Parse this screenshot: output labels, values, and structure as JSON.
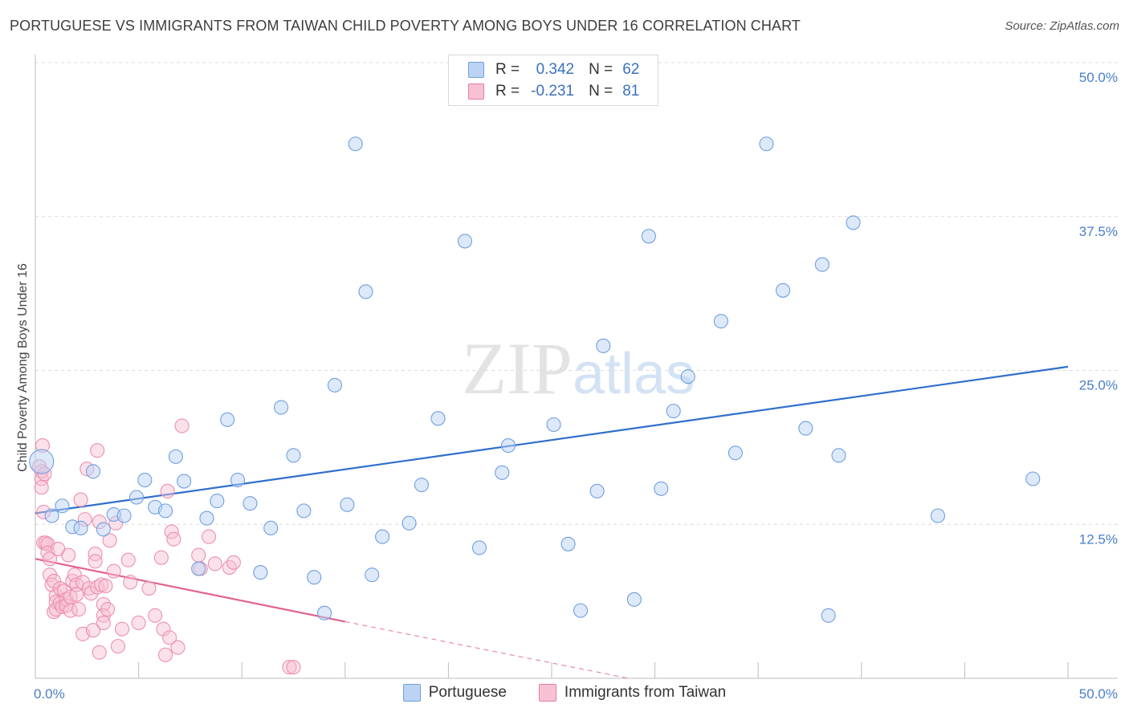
{
  "chart_data": {
    "type": "scatter",
    "title": "PORTUGUESE VS IMMIGRANTS FROM TAIWAN CHILD POVERTY AMONG BOYS UNDER 16 CORRELATION CHART",
    "source": "Source: ZipAtlas.com",
    "watermark": "ZIPatlas",
    "ylabel": "Child Poverty Among Boys Under 16",
    "xlim": [
      0,
      50
    ],
    "ylim": [
      0,
      50
    ],
    "y_ticks": [
      {
        "value": 12.5,
        "label": "12.5%"
      },
      {
        "value": 25.0,
        "label": "25.0%"
      },
      {
        "value": 37.5,
        "label": "37.5%"
      },
      {
        "value": 50.0,
        "label": "50.0%"
      }
    ],
    "x_tick_labels": {
      "min": "0.0%",
      "max": "50.0%"
    },
    "legend": [
      {
        "name": "Portuguese",
        "r_label": "R =",
        "r": "0.342",
        "n_label": "N =",
        "n": "62",
        "color": "#6f9fe0",
        "fill": "#bcd3f3"
      },
      {
        "name": "Immigrants from Taiwan",
        "r_label": "R =",
        "r": "-0.231",
        "n_label": "N =",
        "n": "81",
        "color": "#e87ca0",
        "fill": "#f6c2d3"
      }
    ],
    "series": [
      {
        "name": "Portuguese",
        "trend": {
          "x": [
            0,
            50
          ],
          "y": [
            13.4,
            25.3
          ]
        },
        "points": [
          [
            0.3,
            17.6
          ],
          [
            0.8,
            13.2
          ],
          [
            1.3,
            14.0
          ],
          [
            1.8,
            12.3
          ],
          [
            2.2,
            12.2
          ],
          [
            2.8,
            16.8
          ],
          [
            3.3,
            12.1
          ],
          [
            3.8,
            13.3
          ],
          [
            4.3,
            13.2
          ],
          [
            4.9,
            14.7
          ],
          [
            5.3,
            16.1
          ],
          [
            5.8,
            13.9
          ],
          [
            6.3,
            13.6
          ],
          [
            6.8,
            18.0
          ],
          [
            7.2,
            16.0
          ],
          [
            7.9,
            8.9
          ],
          [
            8.3,
            13.0
          ],
          [
            8.8,
            14.4
          ],
          [
            9.3,
            21.0
          ],
          [
            9.8,
            16.1
          ],
          [
            10.4,
            14.2
          ],
          [
            10.9,
            8.6
          ],
          [
            11.4,
            12.2
          ],
          [
            11.9,
            22.0
          ],
          [
            12.5,
            18.1
          ],
          [
            13.0,
            13.6
          ],
          [
            13.5,
            8.2
          ],
          [
            14.0,
            5.3
          ],
          [
            14.5,
            23.8
          ],
          [
            15.1,
            14.1
          ],
          [
            15.5,
            43.4
          ],
          [
            16.0,
            31.4
          ],
          [
            16.3,
            8.4
          ],
          [
            16.8,
            11.5
          ],
          [
            18.1,
            12.6
          ],
          [
            18.7,
            15.7
          ],
          [
            19.5,
            21.1
          ],
          [
            20.8,
            35.5
          ],
          [
            21.5,
            10.6
          ],
          [
            22.6,
            16.7
          ],
          [
            22.9,
            18.9
          ],
          [
            25.1,
            20.6
          ],
          [
            25.8,
            10.9
          ],
          [
            26.4,
            5.5
          ],
          [
            27.2,
            15.2
          ],
          [
            27.5,
            27.0
          ],
          [
            29.0,
            6.4
          ],
          [
            29.7,
            35.9
          ],
          [
            30.3,
            15.4
          ],
          [
            30.9,
            21.7
          ],
          [
            31.6,
            24.5
          ],
          [
            33.2,
            29.0
          ],
          [
            33.9,
            18.3
          ],
          [
            35.4,
            43.4
          ],
          [
            36.2,
            31.5
          ],
          [
            37.3,
            20.3
          ],
          [
            38.1,
            33.6
          ],
          [
            38.4,
            5.1
          ],
          [
            38.9,
            18.1
          ],
          [
            39.6,
            37.0
          ],
          [
            43.7,
            13.2
          ],
          [
            48.3,
            16.2
          ]
        ]
      },
      {
        "name": "Immigrants from Taiwan",
        "trend": {
          "x": [
            0,
            15
          ],
          "y": [
            9.7,
            4.6
          ]
        },
        "trend_dashed": {
          "x": [
            15,
            28.7
          ],
          "y": [
            4.6,
            0
          ]
        },
        "points": [
          [
            0.2,
            17.2
          ],
          [
            0.3,
            16.8
          ],
          [
            0.3,
            16.2
          ],
          [
            0.3,
            15.5
          ],
          [
            0.4,
            13.5
          ],
          [
            0.4,
            11.0
          ],
          [
            0.5,
            11.0
          ],
          [
            0.6,
            10.9
          ],
          [
            0.6,
            10.2
          ],
          [
            0.7,
            9.7
          ],
          [
            0.7,
            8.4
          ],
          [
            0.8,
            7.6
          ],
          [
            0.9,
            7.9
          ],
          [
            0.9,
            5.4
          ],
          [
            1.0,
            6.7
          ],
          [
            1.0,
            6.2
          ],
          [
            1.0,
            5.6
          ],
          [
            1.1,
            10.5
          ],
          [
            1.2,
            7.3
          ],
          [
            1.2,
            6.1
          ],
          [
            1.3,
            5.8
          ],
          [
            1.4,
            7.1
          ],
          [
            1.5,
            6.4
          ],
          [
            1.5,
            5.9
          ],
          [
            1.6,
            10.0
          ],
          [
            1.7,
            6.6
          ],
          [
            1.7,
            5.5
          ],
          [
            1.8,
            7.9
          ],
          [
            1.9,
            8.4
          ],
          [
            2.0,
            7.6
          ],
          [
            2.0,
            6.8
          ],
          [
            2.1,
            5.6
          ],
          [
            2.2,
            14.5
          ],
          [
            2.3,
            7.8
          ],
          [
            2.3,
            3.6
          ],
          [
            2.4,
            12.9
          ],
          [
            2.5,
            17.0
          ],
          [
            2.6,
            7.3
          ],
          [
            2.7,
            6.9
          ],
          [
            2.8,
            3.9
          ],
          [
            2.9,
            10.1
          ],
          [
            2.9,
            9.5
          ],
          [
            3.0,
            18.5
          ],
          [
            3.0,
            7.4
          ],
          [
            3.1,
            2.1
          ],
          [
            3.1,
            12.7
          ],
          [
            3.2,
            7.6
          ],
          [
            3.3,
            6.0
          ],
          [
            3.3,
            5.1
          ],
          [
            3.3,
            4.5
          ],
          [
            3.4,
            7.5
          ],
          [
            3.5,
            5.6
          ],
          [
            3.6,
            11.2
          ],
          [
            3.8,
            8.7
          ],
          [
            3.9,
            12.6
          ],
          [
            4.0,
            2.6
          ],
          [
            4.2,
            4.0
          ],
          [
            4.5,
            9.6
          ],
          [
            4.6,
            7.8
          ],
          [
            5.0,
            4.5
          ],
          [
            5.5,
            7.3
          ],
          [
            5.8,
            5.1
          ],
          [
            6.1,
            9.8
          ],
          [
            6.2,
            4.0
          ],
          [
            6.3,
            1.9
          ],
          [
            6.4,
            15.2
          ],
          [
            6.5,
            3.3
          ],
          [
            6.6,
            11.9
          ],
          [
            6.7,
            11.3
          ],
          [
            6.9,
            2.5
          ],
          [
            7.1,
            20.5
          ],
          [
            7.9,
            10.0
          ],
          [
            8.0,
            8.9
          ],
          [
            8.4,
            11.5
          ],
          [
            8.7,
            9.3
          ],
          [
            9.4,
            9.0
          ],
          [
            9.6,
            9.4
          ],
          [
            12.3,
            0.9
          ],
          [
            12.5,
            0.9
          ],
          [
            0.35,
            18.9
          ],
          [
            0.45,
            16.6
          ]
        ]
      }
    ]
  }
}
